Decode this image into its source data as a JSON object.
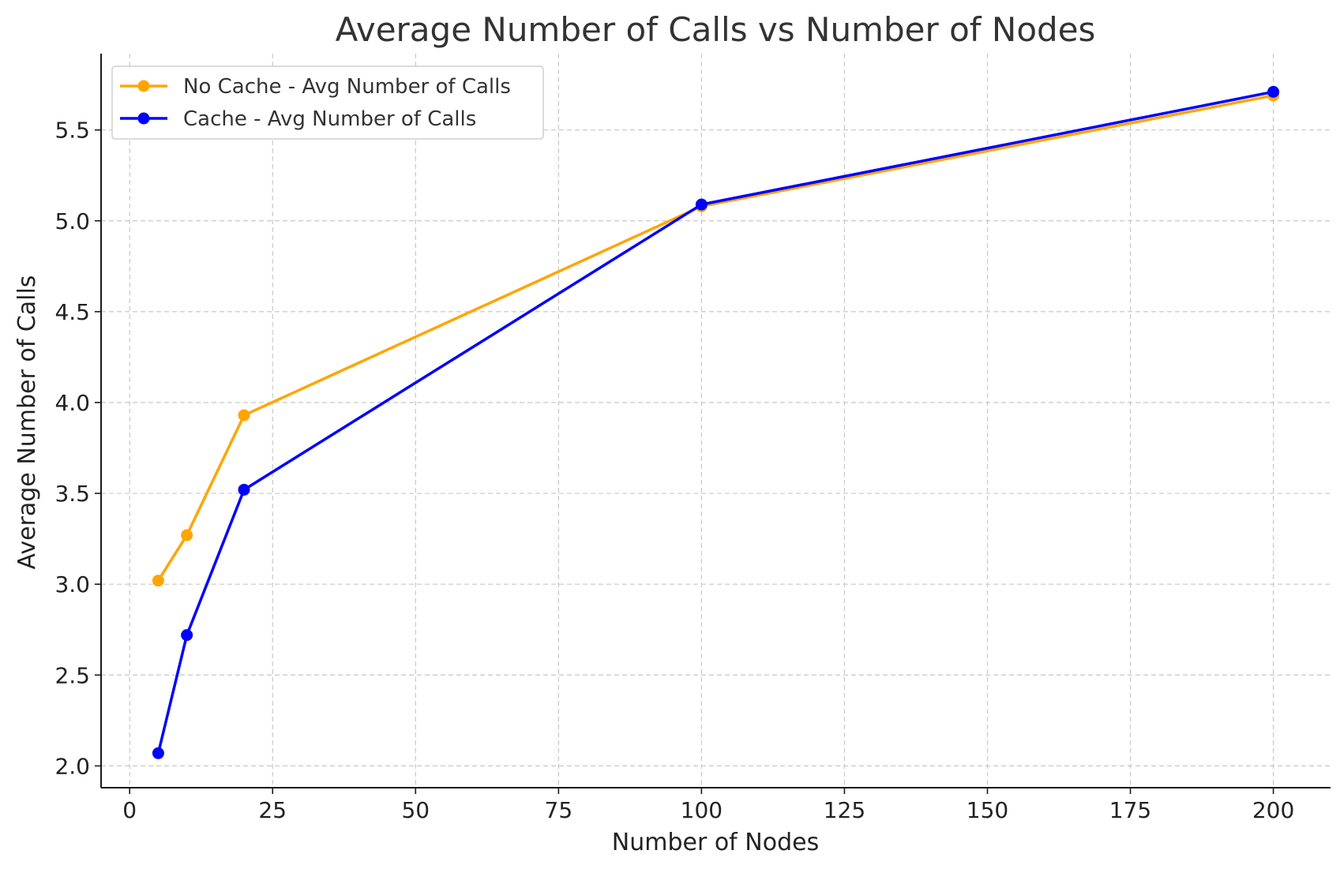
{
  "chart_data": {
    "type": "line",
    "title": "Average Number of Calls vs Number of Nodes",
    "xlabel": "Number of Nodes",
    "ylabel": "Average Number of Calls",
    "xlim": [
      -5,
      210
    ],
    "ylim": [
      1.88,
      5.92
    ],
    "xticks": [
      0,
      25,
      50,
      75,
      100,
      125,
      150,
      175,
      200
    ],
    "yticks": [
      2.0,
      2.5,
      3.0,
      3.5,
      4.0,
      4.5,
      5.0,
      5.5
    ],
    "ytick_labels": [
      "2.0",
      "2.5",
      "3.0",
      "3.5",
      "4.0",
      "4.5",
      "5.0",
      "5.5"
    ],
    "grid": true,
    "legend_position": "top-left",
    "series": [
      {
        "name": "No Cache - Avg Number of Calls",
        "color": "#FFA500",
        "x": [
          5,
          10,
          20,
          100,
          200
        ],
        "y": [
          3.02,
          3.27,
          3.93,
          5.08,
          5.69
        ]
      },
      {
        "name": "Cache - Avg Number of Calls",
        "color": "#0000FF",
        "x": [
          5,
          10,
          20,
          100,
          200
        ],
        "y": [
          2.07,
          2.72,
          3.52,
          5.09,
          5.71
        ]
      }
    ]
  }
}
